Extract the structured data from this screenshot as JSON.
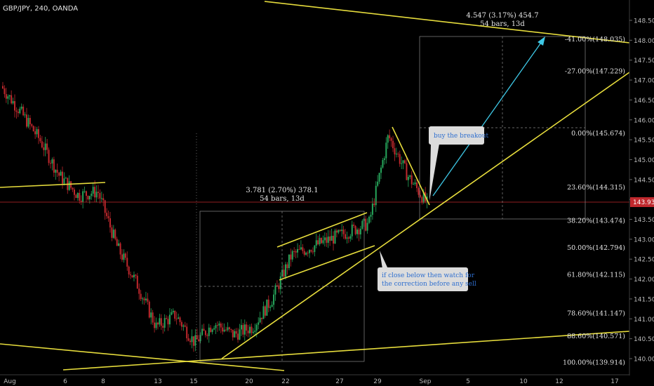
{
  "header": {
    "symbol": "GBP/JPY, 240, OANDA"
  },
  "price_axis": {
    "ticks": [
      "148.500",
      "148.000",
      "147.500",
      "147.000",
      "146.500",
      "146.000",
      "145.500",
      "145.000",
      "144.500",
      "144.000",
      "143.500",
      "143.000",
      "142.500",
      "142.000",
      "141.500",
      "141.000",
      "140.500",
      "140.000"
    ],
    "current_price": "143.931"
  },
  "time_axis": {
    "labels": [
      "Aug",
      "6",
      "8",
      "13",
      "15",
      "20",
      "22",
      "27",
      "29",
      "Sep",
      "5",
      "10",
      "12",
      "17"
    ]
  },
  "fib_levels": [
    {
      "label": "-41.00%(148.035)",
      "price": 148.035
    },
    {
      "label": "-27.00%(147.229)",
      "price": 147.229
    },
    {
      "label": "0.00%(145.674)",
      "price": 145.674
    },
    {
      "label": "23.60%(144.315)",
      "price": 144.315
    },
    {
      "label": "38.20%(143.474)",
      "price": 143.474
    },
    {
      "label": "50.00%(142.794)",
      "price": 142.794
    },
    {
      "label": "61.80%(142.115)",
      "price": 142.115
    },
    {
      "label": "78.60%(141.147)",
      "price": 141.147
    },
    {
      "label": "88.60%(140.571)",
      "price": 140.571
    },
    {
      "label": "100.00%(139.914)",
      "price": 139.914
    }
  ],
  "measure_1": {
    "line1": "3.781 (2.70%) 378.1",
    "line2": "54 bars, 13d"
  },
  "measure_2": {
    "line1": "4.547 (3.17%) 454.7",
    "line2": "54 bars, 13d"
  },
  "callouts": {
    "breakout": "buy the breakout",
    "correction_line1": "if close below then watch for",
    "correction_line2": "the correction before any sell"
  },
  "colors": {
    "up": "#26a65b",
    "down": "#c0282d",
    "trendline": "#e6dc3c",
    "arrow": "#3ec8e6",
    "current_price": "#c0282d",
    "background": "#000000"
  },
  "chart_data": {
    "type": "candlestick",
    "symbol": "GBP/JPY",
    "timeframe": "240",
    "ylim": [
      139.8,
      148.9
    ],
    "price_series_approx": [
      {
        "x": "Aug 1",
        "y": 146.85
      },
      {
        "x": "Aug 2",
        "y": 146.2
      },
      {
        "x": "Aug 3",
        "y": 145.5
      },
      {
        "x": "Aug 6",
        "y": 144.6
      },
      {
        "x": "Aug 7",
        "y": 144.1
      },
      {
        "x": "Aug 8",
        "y": 144.2
      },
      {
        "x": "Aug 9",
        "y": 142.8
      },
      {
        "x": "Aug 10",
        "y": 141.9
      },
      {
        "x": "Aug 13",
        "y": 140.8
      },
      {
        "x": "Aug 14",
        "y": 141.1
      },
      {
        "x": "Aug 15",
        "y": 140.4
      },
      {
        "x": "Aug 16",
        "y": 140.9
      },
      {
        "x": "Aug 17",
        "y": 140.6
      },
      {
        "x": "Aug 20",
        "y": 140.8
      },
      {
        "x": "Aug 21",
        "y": 141.5
      },
      {
        "x": "Aug 22",
        "y": 142.6
      },
      {
        "x": "Aug 23",
        "y": 142.8
      },
      {
        "x": "Aug 24",
        "y": 143.0
      },
      {
        "x": "Aug 27",
        "y": 143.2
      },
      {
        "x": "Aug 28",
        "y": 143.4
      },
      {
        "x": "Aug 29",
        "y": 145.6
      },
      {
        "x": "Aug 30",
        "y": 144.6
      },
      {
        "x": "Aug 31",
        "y": 143.9
      }
    ]
  }
}
